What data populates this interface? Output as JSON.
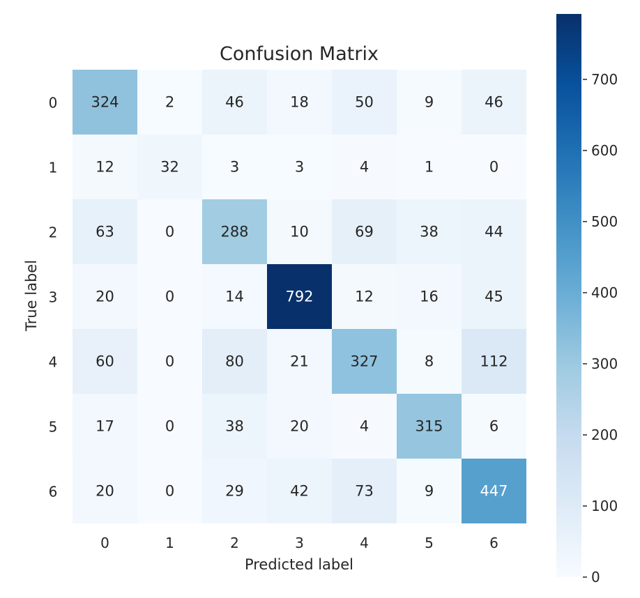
{
  "chart_data": {
    "type": "heatmap",
    "title": "Confusion Matrix",
    "xlabel": "Predicted label",
    "ylabel": "True label",
    "x_ticks": [
      "0",
      "1",
      "2",
      "3",
      "4",
      "5",
      "6"
    ],
    "y_ticks": [
      "0",
      "1",
      "2",
      "3",
      "4",
      "5",
      "6"
    ],
    "matrix": [
      [
        324,
        2,
        46,
        18,
        50,
        9,
        46
      ],
      [
        12,
        32,
        3,
        3,
        4,
        1,
        0
      ],
      [
        63,
        0,
        288,
        10,
        69,
        38,
        44
      ],
      [
        20,
        0,
        14,
        792,
        12,
        16,
        45
      ],
      [
        60,
        0,
        80,
        21,
        327,
        8,
        112
      ],
      [
        17,
        0,
        38,
        20,
        4,
        315,
        6
      ],
      [
        20,
        0,
        29,
        42,
        73,
        9,
        447
      ]
    ],
    "colormap": "Blues",
    "vmin": 0,
    "vmax": 792,
    "colorbar_ticks": [
      0,
      100,
      200,
      300,
      400,
      500,
      600,
      700
    ]
  }
}
